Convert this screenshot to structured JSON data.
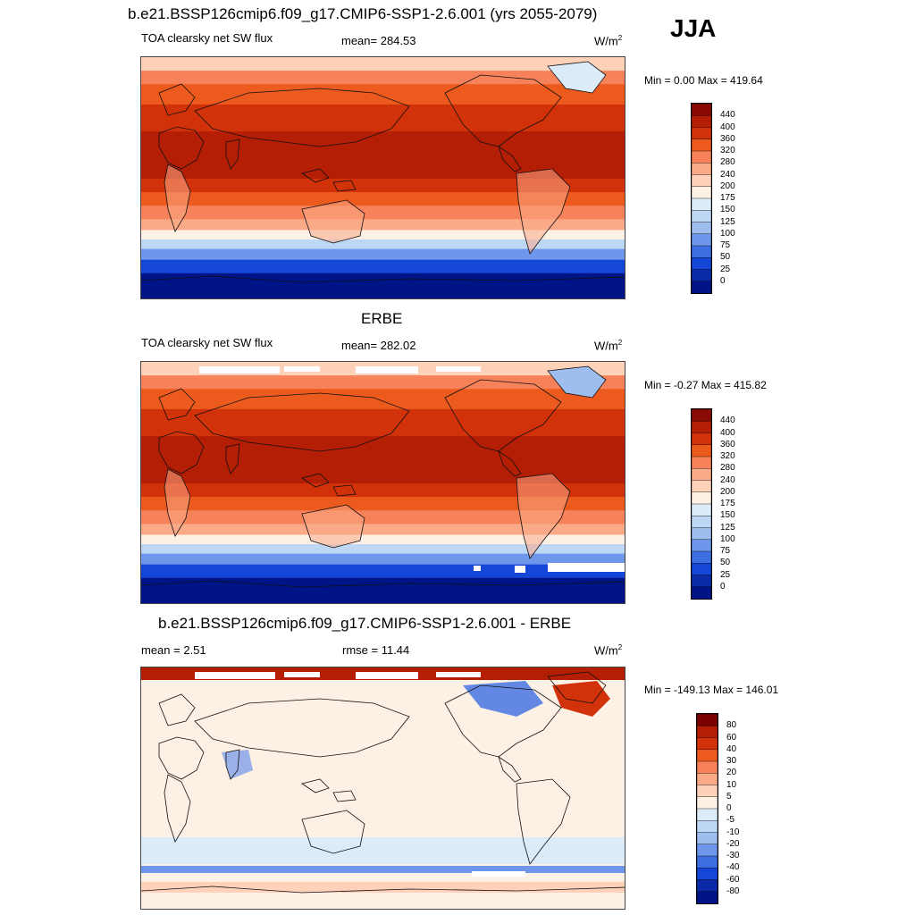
{
  "header": {
    "title": "b.e21.BSSP126cmip6.f09_g17.CMIP6-SSP1-2.6.001 (yrs 2055-2079)",
    "season": "JJA"
  },
  "panels": [
    {
      "heading": "",
      "left_label": "TOA clearsky net SW flux",
      "center_label": "mean= 284.53",
      "units": "W/m",
      "units_sup": "2",
      "minmax": "Min =   0.00 Max = 419.64",
      "colorbar_ticks": [
        "440",
        "400",
        "360",
        "320",
        "280",
        "240",
        "200",
        "175",
        "150",
        "125",
        "100",
        "75",
        "50",
        "25",
        "0"
      ]
    },
    {
      "heading": "ERBE",
      "left_label": "TOA clearsky net SW flux",
      "center_label": "mean= 282.02",
      "units": "W/m",
      "units_sup": "2",
      "minmax": "Min =  -0.27 Max = 415.82",
      "colorbar_ticks": [
        "440",
        "400",
        "360",
        "320",
        "280",
        "240",
        "200",
        "175",
        "150",
        "125",
        "100",
        "75",
        "50",
        "25",
        "0"
      ]
    },
    {
      "heading": "b.e21.BSSP126cmip6.f09_g17.CMIP6-SSP1-2.6.001 - ERBE",
      "left_label": "mean =   2.51",
      "center_label": "rmse =  11.44",
      "units": "W/m",
      "units_sup": "2",
      "minmax": "Min = -149.13 Max = 146.01",
      "colorbar_ticks": [
        "80",
        "60",
        "40",
        "30",
        "20",
        "10",
        "5",
        "0",
        "-5",
        "-10",
        "-20",
        "-30",
        "-40",
        "-60",
        "-80"
      ]
    }
  ],
  "palettes": {
    "abs": [
      "#8a0a05",
      "#b41e05",
      "#d2320a",
      "#ec5a1e",
      "#f7825a",
      "#fbaa88",
      "#fdd2b8",
      "#fdf0e4",
      "#dcebf8",
      "#bed7f5",
      "#9ebeef",
      "#6e96ea",
      "#3c6ee2",
      "#1446d8",
      "#0a2aa8",
      "#001488"
    ],
    "diff": [
      "#7a0000",
      "#b41e05",
      "#d2320a",
      "#ec5a1e",
      "#f7825a",
      "#fbaa88",
      "#fdd2b8",
      "#fdf0e4",
      "#dcebf8",
      "#bed7f5",
      "#9ebeef",
      "#6e96ea",
      "#3c6ee2",
      "#1446d8",
      "#0a2aa8",
      "#001488"
    ]
  },
  "field_zonal": {
    "model": [
      {
        "lat": 90,
        "level": 6
      },
      {
        "lat": 80,
        "level": 4
      },
      {
        "lat": 70,
        "level": 3
      },
      {
        "lat": 55,
        "level": 2
      },
      {
        "lat": 35,
        "level": 1
      },
      {
        "lat": 15,
        "level": 1
      },
      {
        "lat": 0,
        "level": 2
      },
      {
        "lat": -10,
        "level": 3
      },
      {
        "lat": -20,
        "level": 4
      },
      {
        "lat": -30,
        "level": 5
      },
      {
        "lat": -38,
        "level": 7
      },
      {
        "lat": -45,
        "level": 9
      },
      {
        "lat": -52,
        "level": 11
      },
      {
        "lat": -60,
        "level": 13
      },
      {
        "lat": -70,
        "level": 15
      }
    ]
  }
}
